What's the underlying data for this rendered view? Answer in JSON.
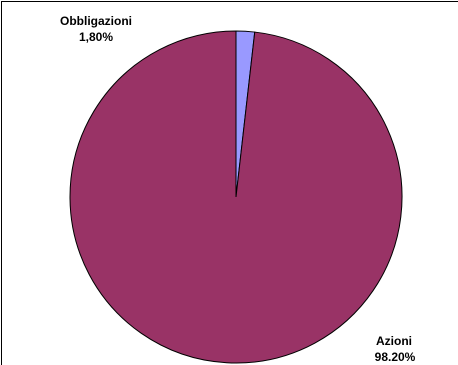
{
  "chart_data": {
    "type": "pie",
    "title": "",
    "start_angle": "12 o'clock",
    "direction": "clockwise",
    "slices": [
      {
        "name": "Obbligazioni",
        "value": 1.8,
        "label_name": "Obbligazioni",
        "label_value": "1,80%",
        "color": "#9999ff"
      },
      {
        "name": "Azioni",
        "value": 98.2,
        "label_name": "Azioni",
        "label_value": "98.20%",
        "color": "#993366"
      }
    ],
    "border_color": "#000000",
    "legend": "none",
    "grid": false
  }
}
